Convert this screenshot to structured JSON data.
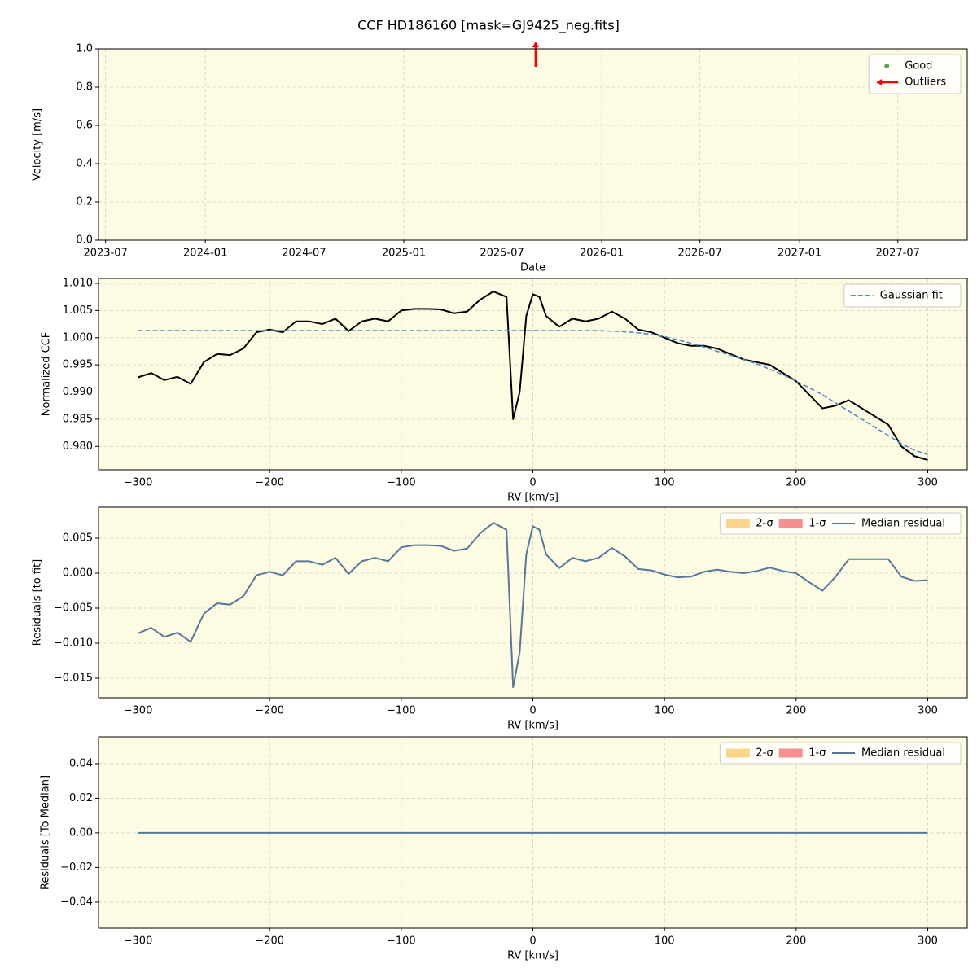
{
  "title": "CCF HD186160 [mask=GJ9425_neg.fits]",
  "chart_data": [
    {
      "type": "scatter",
      "xlabel": "Date",
      "ylabel": "Velocity [m/s]",
      "xlim": [
        "2023-06-18",
        "2027-11-06"
      ],
      "xticks": [
        "2023-07",
        "2024-01",
        "2024-07",
        "2025-01",
        "2025-07",
        "2026-01",
        "2026-07",
        "2027-01",
        "2027-07"
      ],
      "ylim": [
        0,
        1
      ],
      "yticks": [
        {
          "value": 0,
          "label": "0.0"
        },
        {
          "value": 0.2,
          "label": "0.2"
        },
        {
          "value": 0.4,
          "label": "0.4"
        },
        {
          "value": 0.6,
          "label": "0.6"
        },
        {
          "value": 0.8,
          "label": "0.8"
        },
        {
          "value": 1,
          "label": "1.0"
        }
      ],
      "grid": true,
      "legend": "upper right",
      "series": [
        {
          "name": "Good",
          "color": "#5aa55a",
          "x": [],
          "values": []
        },
        {
          "name": "Outliers",
          "color": "#ff0000",
          "x": [
            "2025-09"
          ]
        }
      ]
    },
    {
      "type": "line",
      "xlabel": "RV [km/s]",
      "ylabel": "Normalized CCF",
      "xlim": [
        -330,
        330
      ],
      "xticks": [
        {
          "value": -300,
          "label": "−300"
        },
        {
          "value": -200,
          "label": "−200"
        },
        {
          "value": -100,
          "label": "−100"
        },
        0,
        100,
        200,
        300
      ],
      "ylim": [
        0.9757,
        1.0109
      ],
      "yticks": [
        {
          "value": 0.98,
          "label": "0.980"
        },
        {
          "value": 0.985,
          "label": "0.985"
        },
        {
          "value": 0.99,
          "label": "0.990"
        },
        {
          "value": 0.995,
          "label": "0.995"
        },
        {
          "value": 1,
          "label": "1.000"
        },
        {
          "value": 1.005,
          "label": "1.005"
        },
        {
          "value": 1.01,
          "label": "1.010"
        }
      ],
      "grid": true,
      "legend": "upper right",
      "x": [
        -300,
        -290,
        -280,
        -270,
        -260,
        -250,
        -240,
        -230,
        -220,
        -210,
        -200,
        -190,
        -180,
        -170,
        -160,
        -150,
        -140,
        -130,
        -120,
        -110,
        -100,
        -90,
        -80,
        -70,
        -60,
        -50,
        -40,
        -30,
        -20,
        -15,
        -10,
        -5,
        0,
        5,
        10,
        20,
        30,
        40,
        50,
        60,
        70,
        80,
        90,
        100,
        110,
        120,
        130,
        140,
        150,
        160,
        170,
        180,
        190,
        200,
        210,
        220,
        230,
        240,
        250,
        260,
        270,
        280,
        290,
        300
      ],
      "series": [
        {
          "color": "#000000",
          "values": [
            0.9927,
            0.9935,
            0.9922,
            0.9928,
            0.9915,
            0.9955,
            0.997,
            0.9968,
            0.998,
            1.001,
            1.0015,
            1.001,
            1.003,
            1.003,
            1.0025,
            1.0035,
            1.0012,
            1.003,
            1.0035,
            1.003,
            1.005,
            1.0053,
            1.0053,
            1.0052,
            1.0045,
            1.0048,
            1.007,
            1.0085,
            1.0075,
            0.985,
            0.99,
            1.004,
            1.008,
            1.0075,
            1.004,
            1.002,
            1.0035,
            1.003,
            1.0035,
            1.0048,
            1.0035,
            1.0015,
            1.001,
            1.0,
            0.999,
            0.9985,
            0.9985,
            0.998,
            0.997,
            0.996,
            0.9955,
            0.995,
            0.9935,
            0.992,
            0.9895,
            0.987,
            0.9875,
            0.9885,
            0.987,
            0.9855,
            0.984,
            0.98,
            0.9782,
            0.9775
          ]
        },
        {
          "name": "Gaussian fit",
          "color": "#4a8fc0",
          "dashed": true,
          "values": [
            1.0013,
            1.0013,
            1.0013,
            1.0013,
            1.0013,
            1.0013,
            1.0013,
            1.0013,
            1.0013,
            1.0013,
            1.0013,
            1.0013,
            1.0013,
            1.0013,
            1.0013,
            1.0013,
            1.0013,
            1.0013,
            1.0013,
            1.0013,
            1.0013,
            1.0013,
            1.0013,
            1.0013,
            1.0013,
            1.0013,
            1.0013,
            1.0013,
            1.0013,
            1.0013,
            1.0013,
            1.0013,
            1.0013,
            1.0013,
            1.0013,
            1.0013,
            1.0013,
            1.0013,
            1.0013,
            1.0012,
            1.0011,
            1.0009,
            1.0006,
            1.0002,
            0.9996,
            0.999,
            0.9983,
            0.9975,
            0.9968,
            0.996,
            0.9952,
            0.9942,
            0.9932,
            0.992,
            0.9908,
            0.9895,
            0.988,
            0.9865,
            0.985,
            0.9835,
            0.982,
            0.9805,
            0.9793,
            0.9785
          ]
        }
      ]
    },
    {
      "type": "line",
      "xlabel": "RV [km/s]",
      "ylabel": "Residuals [to fit]",
      "xlim": [
        -330,
        330
      ],
      "xticks": [
        {
          "value": -300,
          "label": "−300"
        },
        {
          "value": -200,
          "label": "−200"
        },
        {
          "value": -100,
          "label": "−100"
        },
        0,
        100,
        200,
        300
      ],
      "ylim": [
        -0.01779,
        0.00942
      ],
      "yticks": [
        {
          "value": -0.015,
          "label": "−0.015"
        },
        {
          "value": -0.01,
          "label": "−0.010"
        },
        {
          "value": -0.005,
          "label": "−0.005"
        },
        {
          "value": 0,
          "label": "0.000"
        },
        {
          "value": 0.005,
          "label": "0.005"
        }
      ],
      "grid": true,
      "legend": "upper right",
      "legend_ncol": 3,
      "x": [
        -300,
        -290,
        -280,
        -270,
        -260,
        -250,
        -240,
        -230,
        -220,
        -210,
        -200,
        -190,
        -180,
        -170,
        -160,
        -150,
        -140,
        -130,
        -120,
        -110,
        -100,
        -90,
        -80,
        -70,
        -60,
        -50,
        -40,
        -30,
        -20,
        -15,
        -10,
        -5,
        0,
        5,
        10,
        20,
        30,
        40,
        50,
        60,
        70,
        80,
        90,
        100,
        110,
        120,
        130,
        140,
        150,
        160,
        170,
        180,
        190,
        200,
        210,
        220,
        230,
        240,
        250,
        260,
        270,
        280,
        290,
        300
      ],
      "series": [
        {
          "name": "2-σ",
          "color": "#fbd58a",
          "band": true
        },
        {
          "name": "1-σ",
          "color": "#f59090",
          "band": true
        },
        {
          "name": "Median residual",
          "color": "#56779c",
          "values": [
            -0.0086,
            -0.0078,
            -0.0091,
            -0.0085,
            -0.0098,
            -0.0058,
            -0.0043,
            -0.0045,
            -0.0033,
            -0.0003,
            0.0002,
            -0.0003,
            0.0017,
            0.0017,
            0.0012,
            0.0022,
            -0.0001,
            0.0017,
            0.0022,
            0.0017,
            0.0037,
            0.004,
            0.004,
            0.0039,
            0.0032,
            0.0035,
            0.0057,
            0.0072,
            0.0062,
            -0.0163,
            -0.0113,
            0.0027,
            0.0067,
            0.0062,
            0.0027,
            0.0007,
            0.0022,
            0.0017,
            0.0022,
            0.0036,
            0.0024,
            0.0006,
            0.0004,
            -0.0002,
            -0.0006,
            -0.0005,
            0.0002,
            0.0005,
            0.0002,
            0.0,
            0.0003,
            0.0008,
            0.0003,
            0.0,
            -0.0013,
            -0.0025,
            -0.0005,
            0.002,
            0.002,
            0.002,
            0.002,
            -0.0005,
            -0.0011,
            -0.001
          ]
        }
      ]
    },
    {
      "type": "line",
      "xlabel": "RV [km/s]",
      "ylabel": "Residuals [To Median]",
      "xlim": [
        -330,
        330
      ],
      "xticks": [
        {
          "value": -300,
          "label": "−300"
        },
        {
          "value": -200,
          "label": "−200"
        },
        {
          "value": -100,
          "label": "−100"
        },
        0,
        100,
        200,
        300
      ],
      "ylim": [
        -0.0551,
        0.0555
      ],
      "yticks": [
        {
          "value": -0.04,
          "label": "−0.04"
        },
        {
          "value": -0.02,
          "label": "−0.02"
        },
        {
          "value": 0,
          "label": "0.00"
        },
        {
          "value": 0.02,
          "label": "0.02"
        },
        {
          "value": 0.04,
          "label": "0.04"
        }
      ],
      "grid": true,
      "legend": "upper right",
      "legend_ncol": 3,
      "x": [
        -300,
        300
      ],
      "series": [
        {
          "name": "2-σ",
          "color": "#fbd58a",
          "band": true
        },
        {
          "name": "1-σ",
          "color": "#f59090",
          "band": true
        },
        {
          "name": "Median residual",
          "color": "#56779c",
          "values": [
            0,
            0
          ]
        }
      ]
    }
  ]
}
